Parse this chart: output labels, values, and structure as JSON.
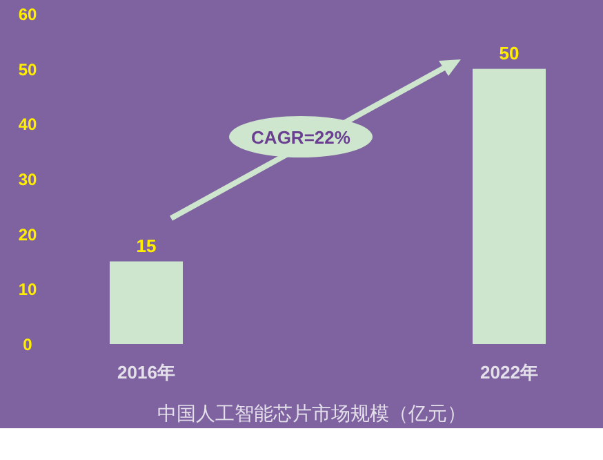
{
  "chart_data": {
    "type": "bar",
    "xlabel": "中国人工智能芯片市场规模（亿元）",
    "categories": [
      "2016年",
      "2022年"
    ],
    "values": [
      15,
      50
    ],
    "color": "#cde6cd",
    "ylim": [
      0,
      60
    ],
    "yticks": [
      0,
      10,
      20,
      30,
      40,
      50,
      60
    ],
    "data_labels": true,
    "annotations": [
      "CAGR=22%"
    ]
  }
}
